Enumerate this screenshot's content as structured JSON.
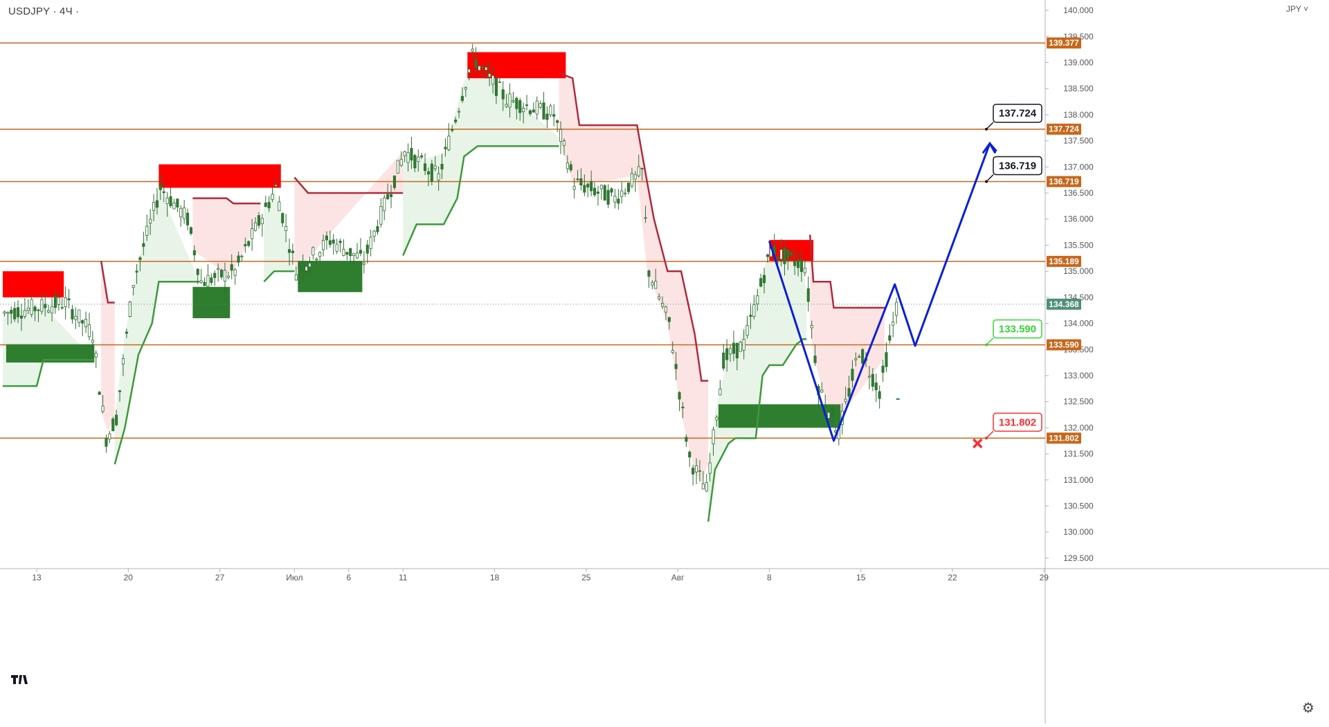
{
  "header": {
    "symbol_title": "USDJPY · 4Ч ·",
    "currency_label": "JPY ˅"
  },
  "colors": {
    "level_line": "#c8671a",
    "level_tag_bg": "#c8671a",
    "current_price_tag_bg": "#4f8f7a",
    "supply_zone": "#ff0000",
    "demand_zone": "#2f7d2f",
    "trend_up": "#3b9a3b",
    "trend_down": "#b02a3a",
    "trend_up_fill": "#e8f4e8",
    "trend_down_fill": "#fde4e4",
    "projection": "#0a1fd8",
    "candle_up": "#2e7d32",
    "candle_down": "#2e7d32"
  },
  "chart_data": {
    "type": "candlestick",
    "symbol": "USDJPY",
    "timeframe": "4Ч",
    "y_range": [
      129.3,
      140.2
    ],
    "y_ticks": [
      "140.000",
      "139.500",
      "139.000",
      "138.500",
      "138.000",
      "137.500",
      "137.000",
      "136.500",
      "136.000",
      "135.500",
      "135.000",
      "134.500",
      "134.000",
      "133.500",
      "133.000",
      "132.500",
      "132.000",
      "131.500",
      "131.000",
      "130.500",
      "130.000",
      "129.500"
    ],
    "x_ticks": [
      "13",
      "20",
      "27",
      "Июл",
      "6",
      "11",
      "18",
      "25",
      "Авг",
      "8",
      "15",
      "22",
      "29"
    ],
    "horizontal_levels": [
      139.377,
      137.724,
      136.719,
      135.189,
      133.59,
      131.802
    ],
    "level_labels": [
      "139.377",
      "137.724",
      "136.719",
      "135.189",
      "133.590",
      "131.802"
    ],
    "current_price": 134.368,
    "current_price_label": "134.368",
    "targets": [
      {
        "label": "137.724",
        "kind": "target"
      },
      {
        "label": "136.719",
        "kind": "target"
      },
      {
        "label": "133.590",
        "kind": "entry"
      },
      {
        "label": "131.802",
        "kind": "stop"
      }
    ],
    "supply_zones": [
      {
        "from_bar": 0,
        "to_bar": 18,
        "low": 134.5,
        "high": 135.0
      },
      {
        "from_bar": 46,
        "to_bar": 82,
        "low": 136.6,
        "high": 137.05
      },
      {
        "from_bar": 137,
        "to_bar": 166,
        "low": 138.7,
        "high": 139.2
      },
      {
        "from_bar": 226,
        "to_bar": 239,
        "low": 135.2,
        "high": 135.6
      }
    ],
    "demand_zones": [
      {
        "from_bar": 1,
        "to_bar": 27,
        "low": 133.25,
        "high": 133.6
      },
      {
        "from_bar": 56,
        "to_bar": 67,
        "low": 134.1,
        "high": 134.7
      },
      {
        "from_bar": 87,
        "to_bar": 106,
        "low": 134.6,
        "high": 135.2
      },
      {
        "from_bar": 211,
        "to_bar": 247,
        "low": 132.0,
        "high": 132.45
      }
    ],
    "projection_path": [
      {
        "bar": 226,
        "price": 135.58
      },
      {
        "bar": 245,
        "price": 131.75
      },
      {
        "bar": 263,
        "price": 134.75
      },
      {
        "bar": 269,
        "price": 133.57
      },
      {
        "bar": 291,
        "price": 137.45
      },
      {
        "bar": 293,
        "price": 137.3
      }
    ],
    "last_bar_projection_tick": 132.55
  },
  "footer": {
    "settings_icon": "gear-icon",
    "logo_text": "TV"
  }
}
